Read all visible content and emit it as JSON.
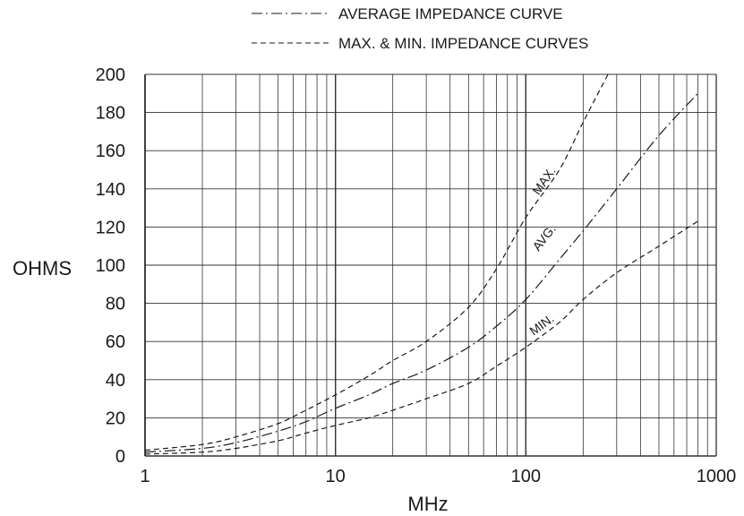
{
  "chart_data": {
    "type": "line",
    "xscale": "log",
    "xlabel": "MHz",
    "ylabel": "OHMS",
    "xlim": [
      1,
      1000
    ],
    "ylim": [
      0,
      200
    ],
    "grid": true,
    "legend_position": "top",
    "x_ticks": [
      "1",
      "10",
      "100",
      "1000"
    ],
    "y_ticks": [
      "0",
      "20",
      "40",
      "60",
      "80",
      "100",
      "120",
      "140",
      "160",
      "180",
      "200"
    ],
    "legend": [
      {
        "label": "AVERAGE IMPEDANCE CURVE",
        "style": "dash-dot"
      },
      {
        "label": "MAX. & MIN. IMPEDANCE CURVES",
        "style": "dashed"
      }
    ],
    "series": [
      {
        "name": "MAX.",
        "style": "dashed",
        "x": [
          1,
          2,
          3,
          5,
          7,
          10,
          15,
          20,
          30,
          50,
          70,
          100,
          150,
          200,
          270
        ],
        "y": [
          3,
          6,
          10,
          17,
          24,
          32,
          42,
          50,
          60,
          78,
          98,
          125,
          150,
          175,
          200
        ]
      },
      {
        "name": "AVG.",
        "style": "dash-dot",
        "x": [
          1,
          2,
          3,
          5,
          7,
          10,
          15,
          20,
          30,
          50,
          70,
          100,
          150,
          200,
          300,
          500,
          800
        ],
        "y": [
          2,
          4,
          7,
          13,
          18,
          25,
          32,
          38,
          45,
          57,
          68,
          82,
          103,
          118,
          140,
          168,
          190
        ]
      },
      {
        "name": "MIN.",
        "style": "dashed",
        "x": [
          1,
          2,
          3,
          5,
          7,
          10,
          15,
          20,
          30,
          50,
          70,
          100,
          150,
          200,
          300,
          500,
          800
        ],
        "y": [
          1,
          2,
          4,
          8,
          12,
          16,
          20,
          24,
          30,
          38,
          47,
          57,
          70,
          82,
          96,
          110,
          123
        ]
      }
    ]
  }
}
